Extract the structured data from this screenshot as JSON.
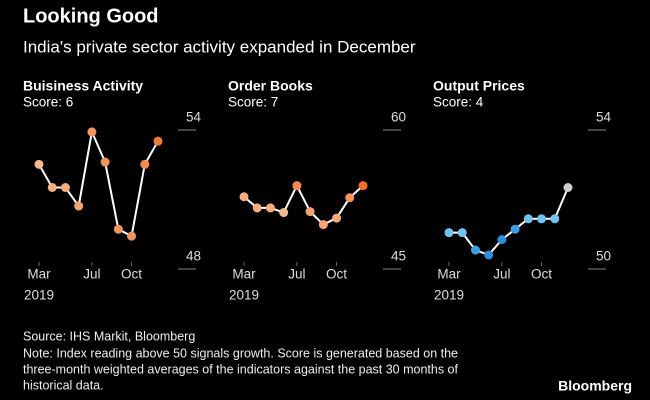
{
  "title": "Looking Good",
  "subtitle": "India's private sector activity expanded in December",
  "source": "Source: IHS Markit, Bloomberg",
  "note_lines": [
    "Note: Index reading above 50 signals growth. Score is generated based on the",
    "three-month weighted averages of the indicators against the past 30 months of",
    "historical data."
  ],
  "brand": "Bloomberg",
  "chart_data": [
    {
      "type": "line",
      "title": "Buisiness Activity",
      "subtitle": "Score: 6",
      "categories": [
        "Mar",
        null,
        null,
        null,
        "Jul",
        null,
        null,
        "Oct",
        null,
        null
      ],
      "year": "2019",
      "values": [
        52.0,
        51.0,
        51.0,
        50.2,
        53.4,
        52.1,
        49.2,
        48.9,
        52.0,
        53.0
      ],
      "line_color": "#ffffff",
      "point_colors": [
        "#f7b98c",
        "#f7ad7a",
        "#f7ad7a",
        "#f6a46e",
        "#f5935a",
        "#f5935a",
        "#f5935a",
        "#f5935a",
        "#f48a4c",
        "#f47b34"
      ],
      "ylim": [
        48,
        54
      ],
      "yticks": [
        48,
        54
      ]
    },
    {
      "type": "line",
      "title": "Order Books",
      "subtitle": "Score: 7",
      "categories": [
        "Mar",
        null,
        null,
        null,
        "Jul",
        null,
        null,
        "Oct",
        null,
        null
      ],
      "year": "2019",
      "values": [
        51.5,
        50.3,
        50.3,
        49.8,
        52.7,
        49.9,
        48.5,
        49.2,
        51.4,
        52.7
      ],
      "line_color": "#ffffff",
      "point_colors": [
        "#f7ad7a",
        "#f7ad7a",
        "#f7ad7a",
        "#f7b98c",
        "#f48a4c",
        "#f7a46e",
        "#f7a46e",
        "#f7ad7a",
        "#f5935a",
        "#f47020"
      ],
      "ylim": [
        45,
        60
      ],
      "yticks": [
        45,
        60
      ]
    },
    {
      "type": "line",
      "title": "Output Prices",
      "subtitle": "Score: 4",
      "categories": [
        "Mar",
        null,
        null,
        null,
        "Jul",
        null,
        null,
        "Oct",
        null,
        null
      ],
      "year": "2019",
      "values": [
        50.7,
        50.7,
        50.2,
        50.06,
        50.5,
        50.8,
        51.1,
        51.1,
        51.1,
        52.0
      ],
      "line_color": "#ffffff",
      "point_colors": [
        "#6fc5f0",
        "#6fc5f0",
        "#3aa0e8",
        "#2b8de0",
        "#2b8de0",
        "#3aa0e8",
        "#6fc5f0",
        "#6fc5f0",
        "#6fc5f0",
        "#cfcfcf"
      ],
      "ylim": [
        50,
        54
      ],
      "yticks": [
        50,
        54
      ]
    }
  ]
}
